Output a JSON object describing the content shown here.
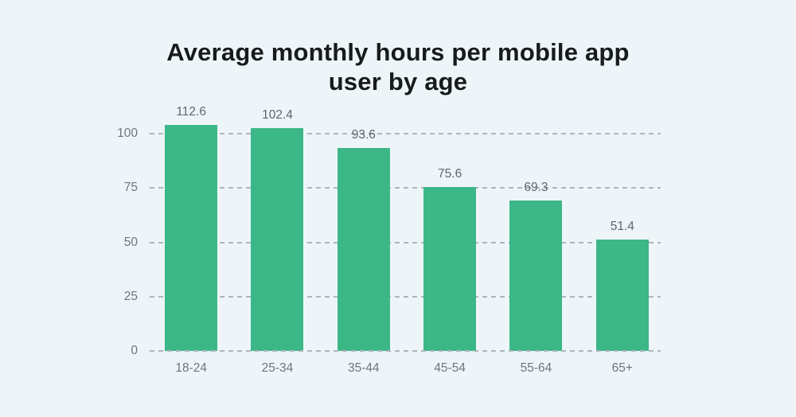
{
  "page": {
    "background_color": "#eef5f9"
  },
  "title": {
    "text": "Average monthly hours per mobile app user by age",
    "line1": "Average monthly hours per mobile app",
    "line2": "user by age"
  },
  "chart_data": {
    "type": "bar",
    "title": "Average monthly hours per mobile app user by age",
    "categories": [
      "18-24",
      "25-34",
      "35-44",
      "45-54",
      "55-64",
      "65+"
    ],
    "values": [
      112.6,
      102.4,
      93.6,
      75.6,
      69.3,
      51.4
    ],
    "value_labels": [
      "112.6",
      "102.4",
      "93.6",
      "75.6",
      "69.3",
      "51.4"
    ],
    "xlabel": "",
    "ylabel": "",
    "yticks": [
      0,
      25,
      50,
      75,
      100
    ],
    "ylim": [
      0,
      104
    ],
    "grid": "horizontal-dashed",
    "legend": "none",
    "note_first_bar": "bar for 18-24 is clipped at top of plot area",
    "colors": {
      "bar": "#3cb787",
      "grid": "#aeb6bd",
      "tick_label": "#6d7681",
      "value_label": "#5d6771",
      "title": "#171b1e",
      "background": "#eef5f9"
    }
  }
}
